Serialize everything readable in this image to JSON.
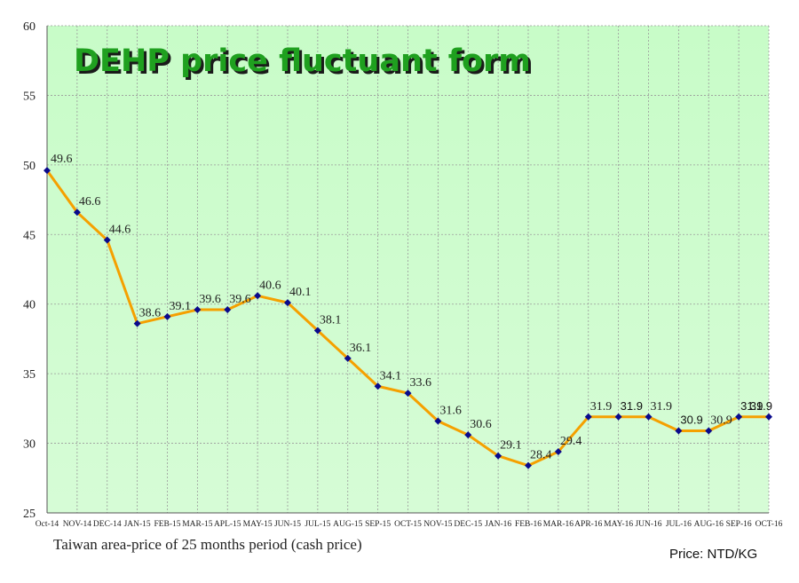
{
  "chart_data": {
    "type": "line",
    "title": "DEHP price fluctuant form",
    "xlabel": "",
    "ylabel": "",
    "ylim": [
      25,
      60
    ],
    "yticks": [
      25,
      30,
      35,
      40,
      45,
      50,
      55,
      60
    ],
    "grid": true,
    "categories": [
      "Oct-14",
      "NOV-14",
      "DEC-14",
      "JAN-15",
      "FEB-15",
      "MAR-15",
      "APL-15",
      "MAY-15",
      "JUN-15",
      "JUL-15",
      "AUG-15",
      "SEP-15",
      "OCT-15",
      "NOV-15",
      "DEC-15",
      "JAN-16",
      "FEB-16",
      "MAR-16",
      "APR-16",
      "MAY-16",
      "JUN-16",
      "JUL-16",
      "AUG-16",
      "SEP-16",
      "OCT-16"
    ],
    "series": [
      {
        "values": [
          49.6,
          46.6,
          44.6,
          38.6,
          39.1,
          39.6,
          39.6,
          40.6,
          40.1,
          38.1,
          36.1,
          34.1,
          33.6,
          31.6,
          30.6,
          29.1,
          28.4,
          29.4,
          31.9,
          31.9,
          31.9,
          30.9,
          30.9,
          31.9,
          31.9
        ],
        "line_color": "#f5a000",
        "marker_color": "#0a0a8c"
      }
    ],
    "plot_background": "#ccffcc",
    "title_color": "#1fa01f"
  },
  "caption": "Taiwan area-price of 25 months period (cash price)",
  "unit_note": "Price: NTD/KG"
}
